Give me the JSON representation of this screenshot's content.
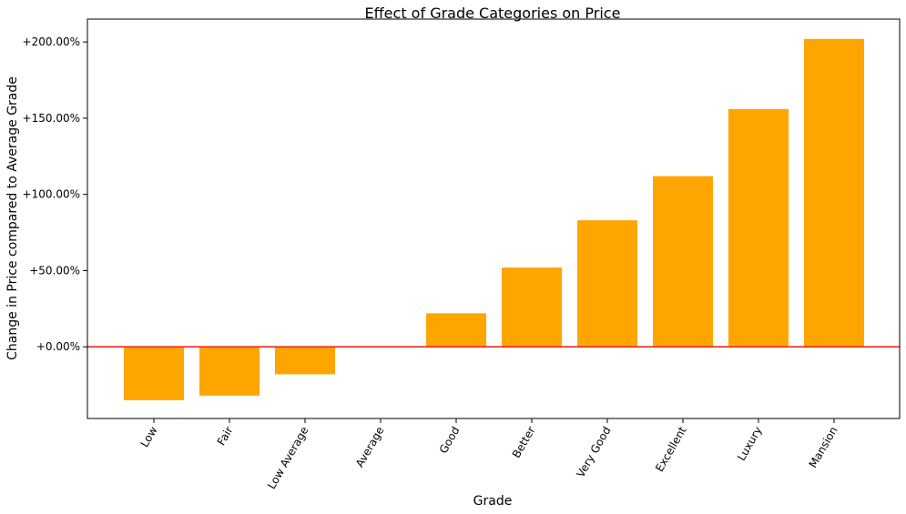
{
  "chart_data": {
    "type": "bar",
    "title": "Effect of Grade Categories on Price",
    "xlabel": "Grade",
    "ylabel": "Change in Price compared to Average Grade",
    "categories": [
      "Low",
      "Fair",
      "Low Average",
      "Average",
      "Good",
      "Better",
      "Very Good",
      "Excellent",
      "Luxury",
      "Mansion"
    ],
    "values": [
      -35,
      -32,
      -18,
      0,
      22,
      52,
      83,
      112,
      156,
      202
    ],
    "ylim": [
      -47,
      215
    ],
    "yticks": [
      0,
      50,
      100,
      150,
      200
    ],
    "ytick_labels": [
      "+0.00%",
      "+50.00%",
      "+100.00%",
      "+150.00%",
      "+200.00%"
    ],
    "reference_line": 0,
    "grid": false,
    "colors": {
      "bar": "#ffa500",
      "reference_line": "#e8302a",
      "axes": "#000000"
    }
  }
}
